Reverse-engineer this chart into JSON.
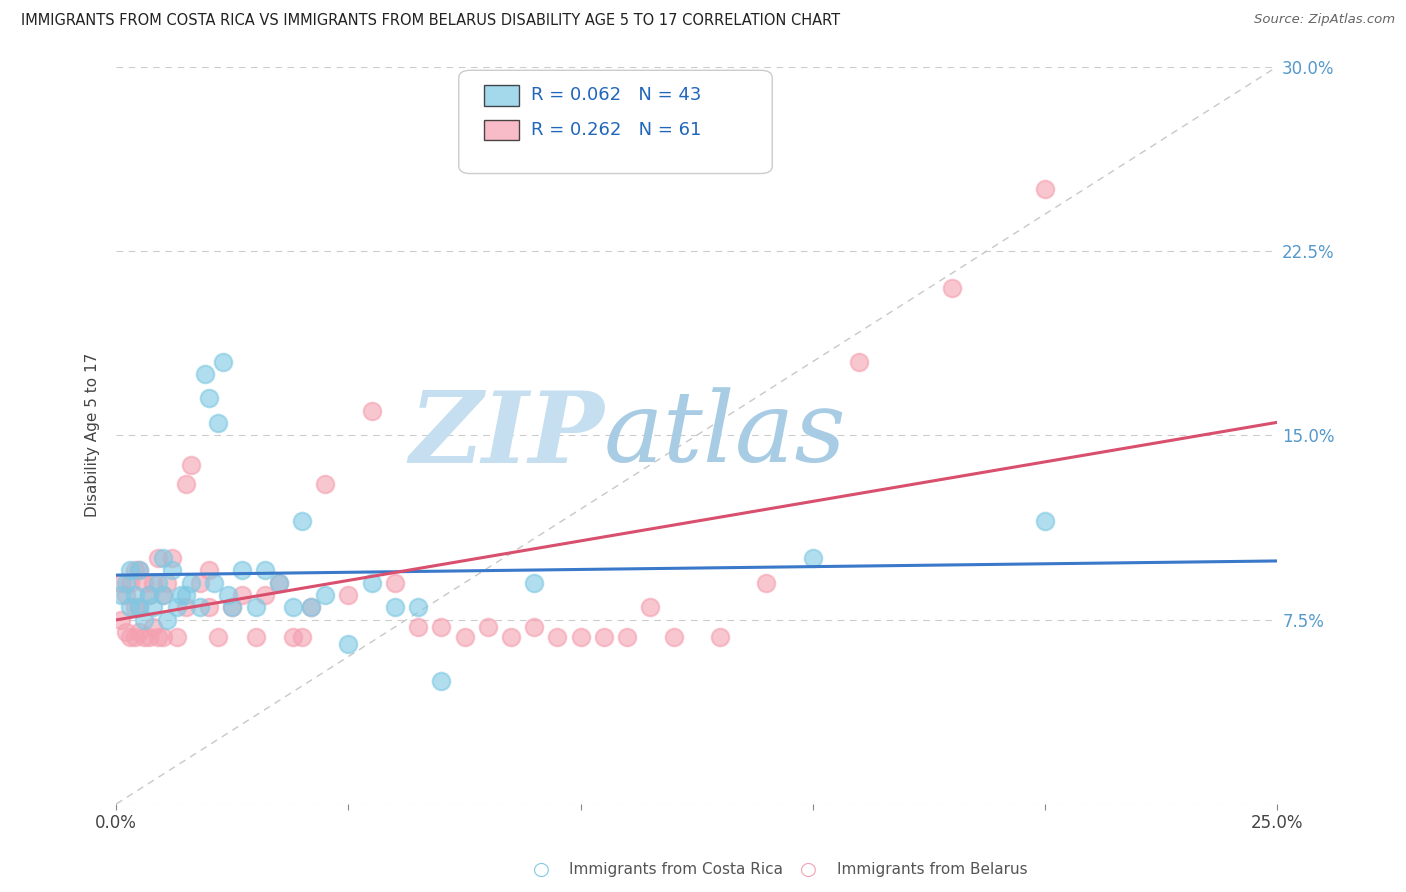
{
  "title": "IMMIGRANTS FROM COSTA RICA VS IMMIGRANTS FROM BELARUS DISABILITY AGE 5 TO 17 CORRELATION CHART",
  "source": "Source: ZipAtlas.com",
  "ylabel": "Disability Age 5 to 17",
  "xlim": [
    0.0,
    0.25
  ],
  "ylim": [
    0.0,
    0.3
  ],
  "xticks": [
    0.0,
    0.05,
    0.1,
    0.15,
    0.2,
    0.25
  ],
  "xticklabels": [
    "0.0%",
    "",
    "",
    "",
    "",
    "25.0%"
  ],
  "yticks": [
    0.0,
    0.075,
    0.15,
    0.225,
    0.3
  ],
  "yticklabels": [
    "",
    "7.5%",
    "15.0%",
    "22.5%",
    "30.0%"
  ],
  "legend_labels": [
    "Immigrants from Costa Rica",
    "Immigrants from Belarus"
  ],
  "legend_r_n": [
    {
      "R": "0.062",
      "N": "43"
    },
    {
      "R": "0.262",
      "N": "61"
    }
  ],
  "costa_rica_color": "#7ec8e3",
  "belarus_color": "#f4a0b0",
  "trend_costa_rica_color": "#3a78c9",
  "trend_belarus_color": "#d94f6e",
  "watermark_zip_color": "#c0d8ec",
  "watermark_atlas_color": "#a8c8e8",
  "costa_rica_x": [
    0.001,
    0.002,
    0.003,
    0.003,
    0.004,
    0.005,
    0.005,
    0.006,
    0.007,
    0.008,
    0.009,
    0.01,
    0.01,
    0.011,
    0.012,
    0.013,
    0.014,
    0.015,
    0.016,
    0.018,
    0.019,
    0.02,
    0.021,
    0.022,
    0.023,
    0.024,
    0.025,
    0.027,
    0.03,
    0.032,
    0.035,
    0.038,
    0.04,
    0.042,
    0.045,
    0.05,
    0.055,
    0.06,
    0.065,
    0.07,
    0.09,
    0.15,
    0.2
  ],
  "costa_rica_y": [
    0.085,
    0.09,
    0.08,
    0.095,
    0.085,
    0.08,
    0.095,
    0.075,
    0.085,
    0.08,
    0.09,
    0.085,
    0.1,
    0.075,
    0.095,
    0.08,
    0.085,
    0.085,
    0.09,
    0.08,
    0.175,
    0.165,
    0.09,
    0.155,
    0.18,
    0.085,
    0.08,
    0.095,
    0.08,
    0.095,
    0.09,
    0.08,
    0.115,
    0.08,
    0.085,
    0.065,
    0.09,
    0.08,
    0.08,
    0.05,
    0.09,
    0.1,
    0.115
  ],
  "belarus_x": [
    0.001,
    0.001,
    0.002,
    0.002,
    0.003,
    0.003,
    0.004,
    0.004,
    0.004,
    0.005,
    0.005,
    0.005,
    0.006,
    0.006,
    0.007,
    0.007,
    0.008,
    0.008,
    0.009,
    0.009,
    0.01,
    0.01,
    0.011,
    0.012,
    0.013,
    0.015,
    0.015,
    0.016,
    0.018,
    0.02,
    0.02,
    0.022,
    0.025,
    0.027,
    0.03,
    0.032,
    0.035,
    0.038,
    0.04,
    0.042,
    0.045,
    0.05,
    0.055,
    0.06,
    0.065,
    0.07,
    0.075,
    0.08,
    0.085,
    0.09,
    0.095,
    0.1,
    0.105,
    0.11,
    0.115,
    0.12,
    0.13,
    0.14,
    0.16,
    0.18,
    0.2
  ],
  "belarus_y": [
    0.075,
    0.09,
    0.07,
    0.085,
    0.068,
    0.09,
    0.068,
    0.08,
    0.095,
    0.07,
    0.08,
    0.095,
    0.068,
    0.09,
    0.068,
    0.085,
    0.072,
    0.09,
    0.068,
    0.1,
    0.068,
    0.085,
    0.09,
    0.1,
    0.068,
    0.08,
    0.13,
    0.138,
    0.09,
    0.08,
    0.095,
    0.068,
    0.08,
    0.085,
    0.068,
    0.085,
    0.09,
    0.068,
    0.068,
    0.08,
    0.13,
    0.085,
    0.16,
    0.09,
    0.072,
    0.072,
    0.068,
    0.072,
    0.068,
    0.072,
    0.068,
    0.068,
    0.068,
    0.068,
    0.08,
    0.068,
    0.068,
    0.09,
    0.18,
    0.21,
    0.25
  ]
}
